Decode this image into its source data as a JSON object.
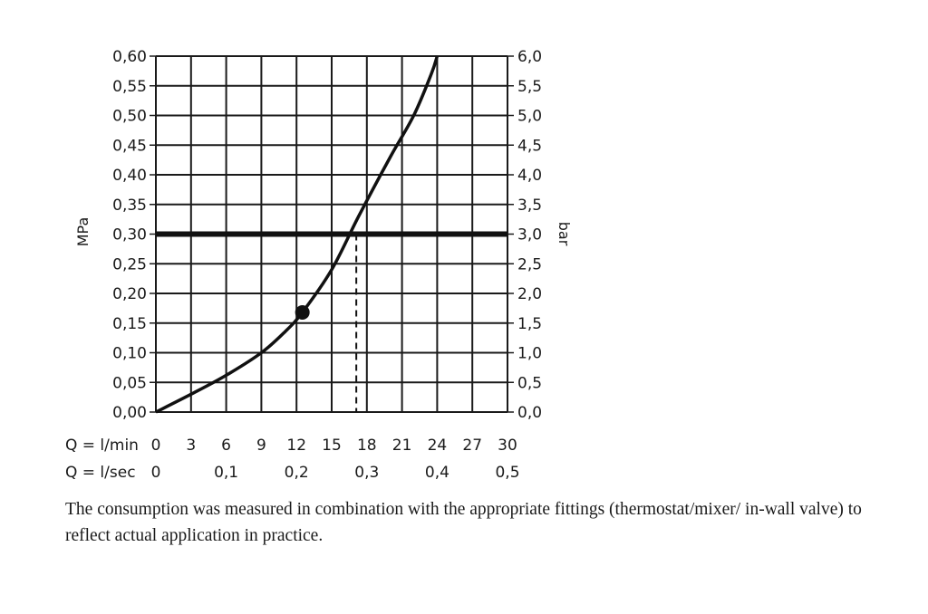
{
  "chart_data": {
    "type": "line",
    "left_axis": {
      "label": "MPa",
      "ylim": [
        0,
        0.6
      ],
      "ticks": [
        0,
        0.05,
        0.1,
        0.15,
        0.2,
        0.25,
        0.3,
        0.35,
        0.4,
        0.45,
        0.5,
        0.55,
        0.6
      ],
      "tick_labels": [
        "0,00",
        "0,05",
        "0,10",
        "0,15",
        "0,20",
        "0,25",
        "0,30",
        "0,35",
        "0,40",
        "0,45",
        "0,50",
        "0,55",
        "0,60"
      ]
    },
    "right_axis": {
      "label": "bar",
      "tick_labels": [
        "0,0",
        "0,5",
        "1,0",
        "1,5",
        "2,0",
        "2,5",
        "3,0",
        "3,5",
        "4,0",
        "4,5",
        "5,0",
        "5,5",
        "6,0"
      ]
    },
    "x_axis": {
      "xlim": [
        0,
        30
      ],
      "primary_label": "Q = l/min",
      "primary_ticks": [
        0,
        3,
        6,
        9,
        12,
        15,
        18,
        21,
        24,
        27,
        30
      ],
      "primary_tick_labels": [
        "0",
        "3",
        "6",
        "9",
        "12",
        "15",
        "18",
        "21",
        "24",
        "27",
        "30"
      ],
      "secondary_label": "Q = l/sec",
      "secondary_ticks": [
        0,
        6,
        12,
        18,
        24,
        30
      ],
      "secondary_tick_labels": [
        "0",
        "0,1",
        "0,2",
        "0,3",
        "0,4",
        "0,5"
      ]
    },
    "grid": true,
    "series": [
      {
        "x": [
          0,
          3,
          6,
          9,
          11,
          12.5,
          15,
          17.3,
          20,
          22,
          23.5,
          24
        ],
        "y": [
          0,
          0.03,
          0.062,
          0.1,
          0.135,
          0.168,
          0.24,
          0.33,
          0.43,
          0.5,
          0.57,
          0.6
        ]
      }
    ],
    "reference_line": {
      "y": 0.3
    },
    "marker": {
      "x": 12.5,
      "y": 0.168
    },
    "drop_line": {
      "x": 17.1,
      "y": 0.3
    }
  },
  "caption": "The consumption was measured in combination with the appropriate fittings (thermostat/mixer/ in-wall valve) to reflect actual application in practice."
}
